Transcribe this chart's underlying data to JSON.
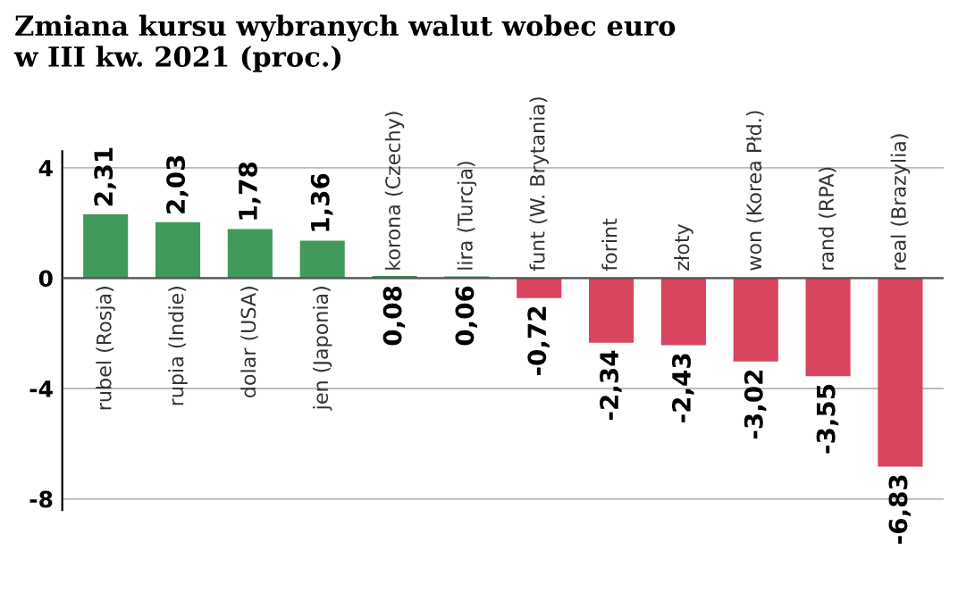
{
  "chart_data": {
    "type": "bar",
    "title": "Zmiana kursu wybranych walut wobec euro\nw III kw. 2021 (proc.)",
    "categories": [
      "rubel (Rosja)",
      "rupia (Indie)",
      "dolar (USA)",
      "jen (Japonia)",
      "korona (Czechy)",
      "lira (Turcja)",
      "funt (W. Brytania)",
      "forint",
      "złoty",
      "won (Korea Płd.)",
      "rand (RPA)",
      "real (Brazylia)"
    ],
    "values": [
      2.31,
      2.03,
      1.78,
      1.36,
      0.08,
      0.06,
      -0.72,
      -2.34,
      -2.43,
      -3.02,
      -3.55,
      -6.83
    ],
    "colors": [
      "#3f9a5c",
      "#3f9a5c",
      "#3f9a5c",
      "#3f9a5c",
      "#3f9a5c",
      "#3f9a5c",
      "#d9445e",
      "#d9445e",
      "#d9445e",
      "#d9445e",
      "#d9445e",
      "#d9445e"
    ],
    "value_labels": [
      "2,31",
      "2,03",
      "1,78",
      "1,36",
      "0,08",
      "0,06",
      "-0,72",
      "-2,34",
      "-2,43",
      "-3,02",
      "-3,55",
      "-6,83"
    ],
    "ylim": [
      -8.4,
      4.6
    ],
    "yticks": [
      4,
      0,
      -4,
      -8
    ],
    "grid": "y"
  }
}
